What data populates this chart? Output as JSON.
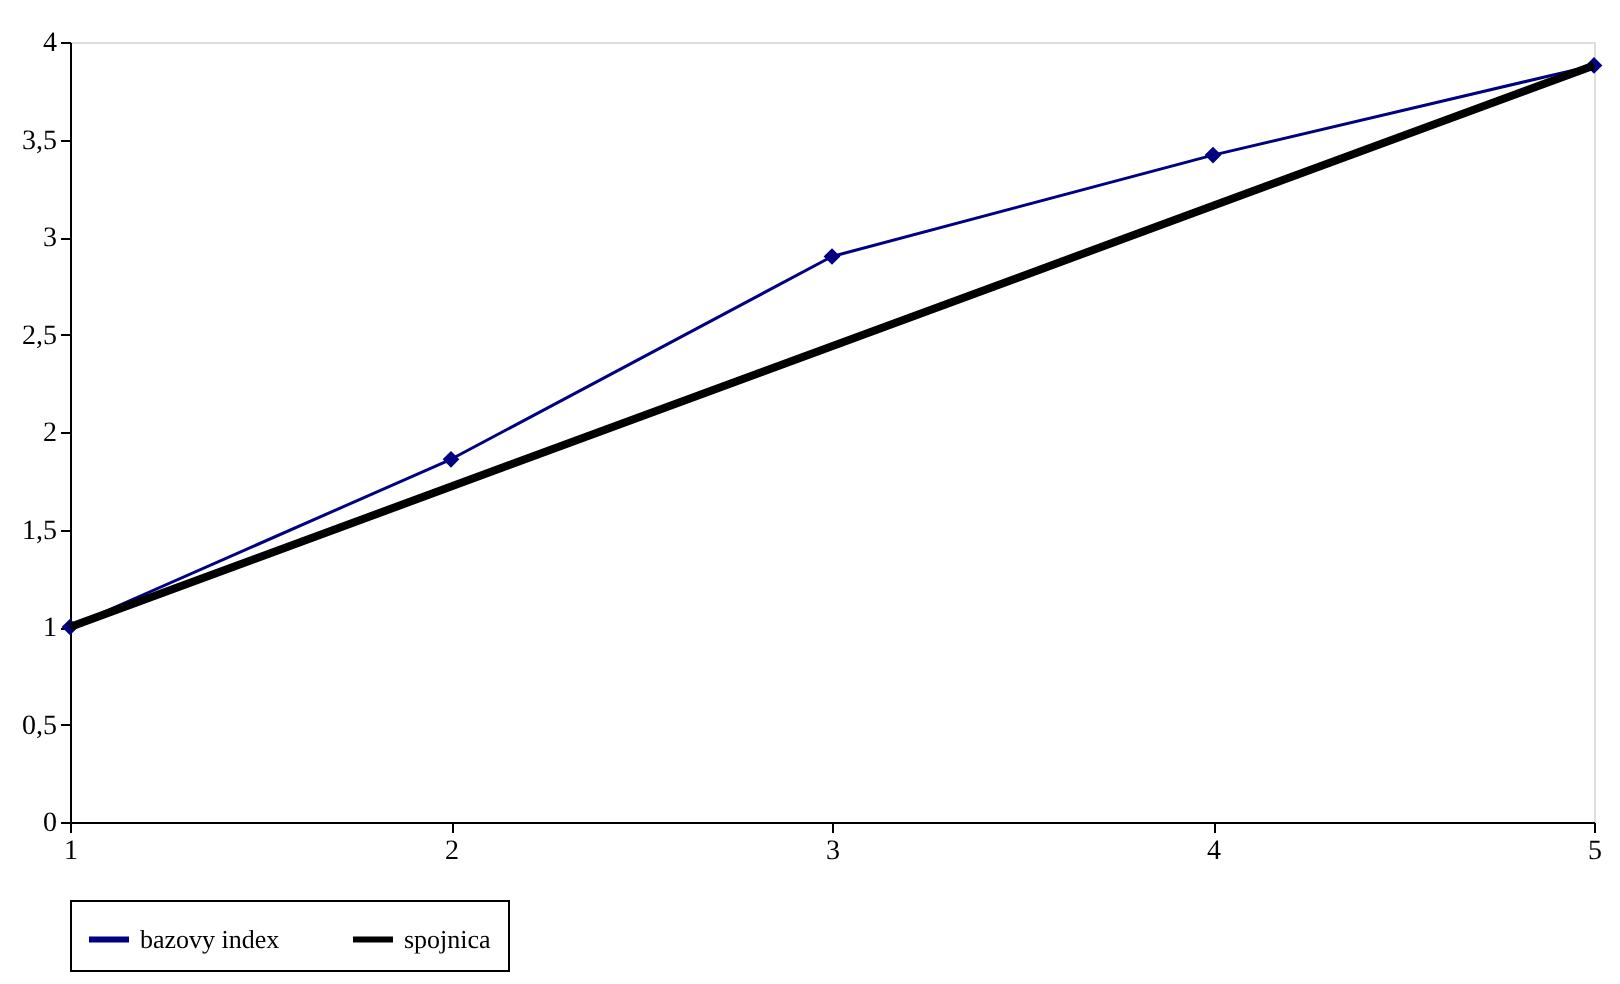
{
  "chart_data": {
    "type": "line",
    "x": [
      1,
      2,
      3,
      4,
      5
    ],
    "series": [
      {
        "name": "bazovy index",
        "color": "#000080",
        "values": [
          1,
          1.86,
          2.9,
          3.42,
          3.88
        ],
        "marker": "diamond"
      },
      {
        "name": "spojnica",
        "color": "#000000",
        "x": [
          1,
          5
        ],
        "values": [
          1,
          3.88
        ],
        "marker": "none"
      }
    ],
    "xlim": [
      1,
      5
    ],
    "xticks": [
      1,
      2,
      3,
      4,
      5
    ],
    "ylim": [
      0,
      4
    ],
    "yticks": [
      0,
      {
        "value": 0.5,
        "label": "0,5"
      },
      1,
      {
        "value": 1.5,
        "label": "1,5"
      },
      2,
      {
        "value": 2.5,
        "label": "2,5"
      },
      3,
      {
        "value": 3.5,
        "label": "3,5"
      },
      4
    ],
    "grid": false,
    "legend": "bottom",
    "line_style": "solid"
  }
}
